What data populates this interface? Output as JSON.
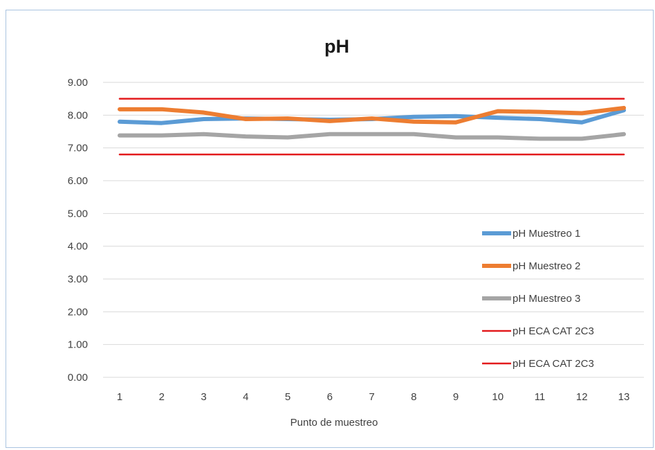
{
  "chart_data": {
    "type": "line",
    "title": "pH",
    "xlabel": "Punto de muestreo",
    "ylabel": "",
    "categories": [
      "1",
      "2",
      "3",
      "4",
      "5",
      "6",
      "7",
      "8",
      "9",
      "10",
      "11",
      "12",
      "13"
    ],
    "ylim": [
      0,
      9
    ],
    "yticks": [
      "0.00",
      "1.00",
      "2.00",
      "3.00",
      "4.00",
      "5.00",
      "6.00",
      "7.00",
      "8.00",
      "9.00"
    ],
    "grid": true,
    "legend_position": "right",
    "series": [
      {
        "name": "pH Muestreo 1",
        "color": "#5b9bd5",
        "values": [
          7.8,
          7.76,
          7.88,
          7.9,
          7.88,
          7.86,
          7.88,
          7.95,
          7.97,
          7.92,
          7.88,
          7.78,
          8.15
        ]
      },
      {
        "name": "pH Muestreo 2",
        "color": "#ed7d31",
        "values": [
          8.18,
          8.18,
          8.08,
          7.88,
          7.9,
          7.82,
          7.9,
          7.8,
          7.78,
          8.12,
          8.1,
          8.06,
          8.22
        ]
      },
      {
        "name": "pH Muestreo 3",
        "color": "#a5a5a5",
        "values": [
          7.38,
          7.38,
          7.42,
          7.35,
          7.32,
          7.42,
          7.42,
          7.42,
          7.32,
          7.32,
          7.28,
          7.28,
          7.42
        ]
      },
      {
        "name": "pH ECA CAT 2C3",
        "color": "#e31a1c",
        "values": [
          8.5,
          8.5,
          8.5,
          8.5,
          8.5,
          8.5,
          8.5,
          8.5,
          8.5,
          8.5,
          8.5,
          8.5,
          8.5
        ]
      },
      {
        "name": "pH ECA CAT 2C3",
        "color": "#e31a1c",
        "values": [
          6.8,
          6.8,
          6.8,
          6.8,
          6.8,
          6.8,
          6.8,
          6.8,
          6.8,
          6.8,
          6.8,
          6.8,
          6.8
        ]
      }
    ]
  }
}
